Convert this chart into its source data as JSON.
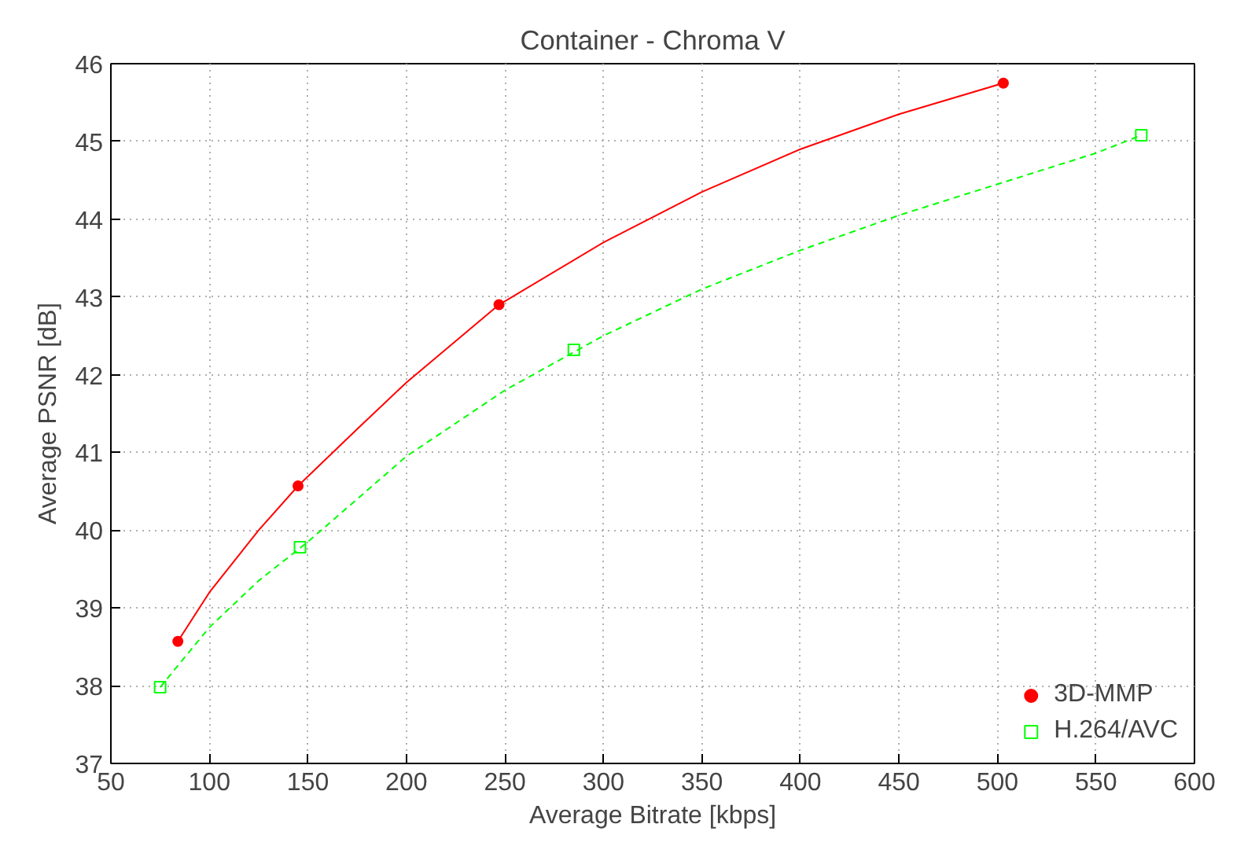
{
  "chart_data": {
    "type": "scatter",
    "title": "Container - Chroma V",
    "xlabel": "Average Bitrate [kbps]",
    "ylabel": "Average PSNR [dB]",
    "xlim": [
      50,
      600
    ],
    "xticks": [
      50,
      100,
      150,
      200,
      250,
      300,
      350,
      400,
      450,
      500,
      550,
      600
    ],
    "ylim": [
      37,
      46
    ],
    "yticks": [
      37,
      38,
      39,
      40,
      41,
      42,
      43,
      44,
      45,
      46
    ],
    "grid": true,
    "legend": "bottom right",
    "series": [
      {
        "type": "line",
        "color": "#ff0000",
        "marker": "none",
        "line_style": "solid",
        "x": [
          84,
          100,
          125,
          145,
          175,
          200,
          247,
          300,
          350,
          400,
          450,
          503
        ],
        "values": [
          38.57,
          39.2,
          40.0,
          40.57,
          41.3,
          41.9,
          42.9,
          43.7,
          44.35,
          44.9,
          45.35,
          45.75
        ]
      },
      {
        "type": "line",
        "color": "#00ff00",
        "marker": "none",
        "line_style": "dashed",
        "x": [
          75,
          100,
          125,
          150,
          200,
          250,
          300,
          350,
          400,
          450,
          500,
          550,
          573
        ],
        "values": [
          37.98,
          38.75,
          39.35,
          39.85,
          40.95,
          41.8,
          42.5,
          43.1,
          43.6,
          44.05,
          44.45,
          44.85,
          45.08
        ]
      },
      {
        "name": "3D-MMP",
        "color": "#ff0000",
        "marker": "circle",
        "x": [
          84,
          145,
          247,
          503
        ],
        "values": [
          38.57,
          40.57,
          42.9,
          45.75
        ]
      },
      {
        "name": "H.264/AVC",
        "color": "#00ff00",
        "marker": "square",
        "x": [
          75,
          146,
          285,
          573
        ],
        "values": [
          37.98,
          39.78,
          42.32,
          45.08
        ]
      }
    ]
  }
}
